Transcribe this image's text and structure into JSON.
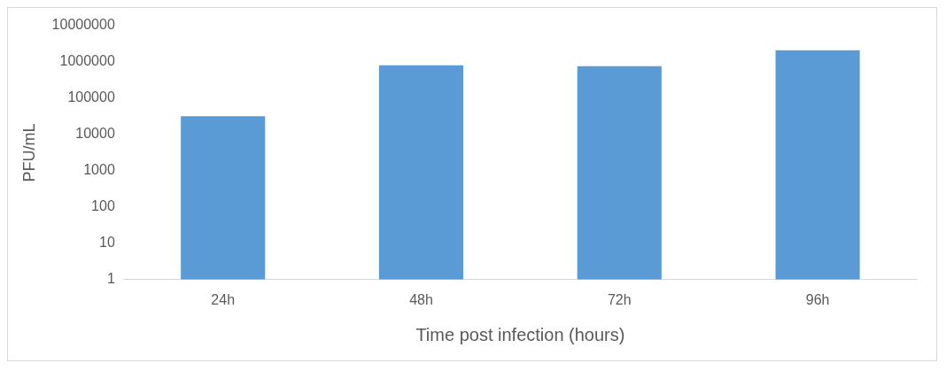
{
  "chart_data": {
    "type": "bar",
    "xlabel": "Time post infection (hours)",
    "ylabel": "PFU/mL",
    "categories": [
      "24h",
      "48h",
      "72h",
      "96h"
    ],
    "values": [
      32000,
      810000,
      760000,
      2100000
    ],
    "color": "#5b9bd5",
    "log": true,
    "ylim": [
      1,
      10000000
    ],
    "yticks": [
      1,
      10,
      100,
      1000,
      10000,
      100000,
      1000000,
      10000000
    ],
    "grid": false,
    "legend": false
  }
}
